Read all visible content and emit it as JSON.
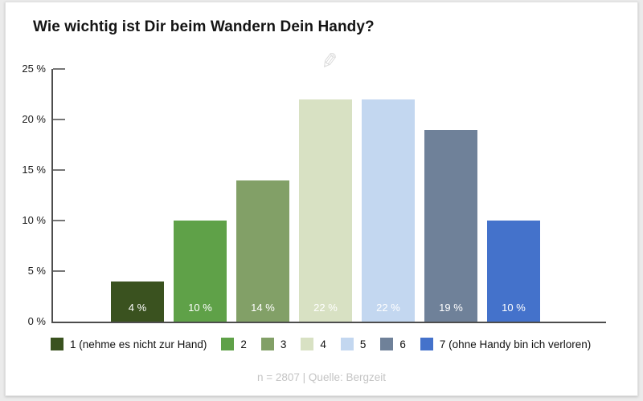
{
  "page": {
    "title": "Wie wichtig ist Dir beim Wandern Dein Handy?",
    "footer": "n = 2807 | Quelle: Bergzeit"
  },
  "icons": {
    "edit_pencil_glyph": "✎"
  },
  "chart_data": {
    "type": "bar",
    "title": "Wie wichtig ist Dir beim Wandern Dein Handy?",
    "categories": [
      "1",
      "2",
      "3",
      "4",
      "5",
      "6",
      "7"
    ],
    "values": [
      4,
      10,
      14,
      22,
      22,
      19,
      10
    ],
    "bar_labels": [
      "4 %",
      "10 %",
      "14 %",
      "22 %",
      "22 %",
      "19 %",
      "10 %"
    ],
    "colors": [
      "#3a521f",
      "#5fa148",
      "#82a067",
      "#d8e1c3",
      "#c3d7f0",
      "#6f8199",
      "#4472cb"
    ],
    "xlabel": "",
    "ylabel": "",
    "ylim": [
      0,
      25
    ],
    "y_ticks": [
      {
        "value": 0,
        "label": "0 %"
      },
      {
        "value": 5,
        "label": "5 %"
      },
      {
        "value": 10,
        "label": "10 %"
      },
      {
        "value": 15,
        "label": "15 %"
      },
      {
        "value": 20,
        "label": "20 %"
      },
      {
        "value": 25,
        "label": "25 %"
      }
    ],
    "grid": false,
    "legend_position": "bottom",
    "legend": [
      {
        "label": "1 (nehme es nicht zur Hand)",
        "color": "#3a521f"
      },
      {
        "label": "2",
        "color": "#5fa148"
      },
      {
        "label": "3",
        "color": "#82a067"
      },
      {
        "label": "4",
        "color": "#d8e1c3"
      },
      {
        "label": "5",
        "color": "#c3d7f0"
      },
      {
        "label": "6",
        "color": "#6f8199"
      },
      {
        "label": "7 (ohne Handy bin ich verloren)",
        "color": "#4472cb"
      }
    ],
    "source_note": "n = 2807 | Quelle: Bergzeit"
  }
}
